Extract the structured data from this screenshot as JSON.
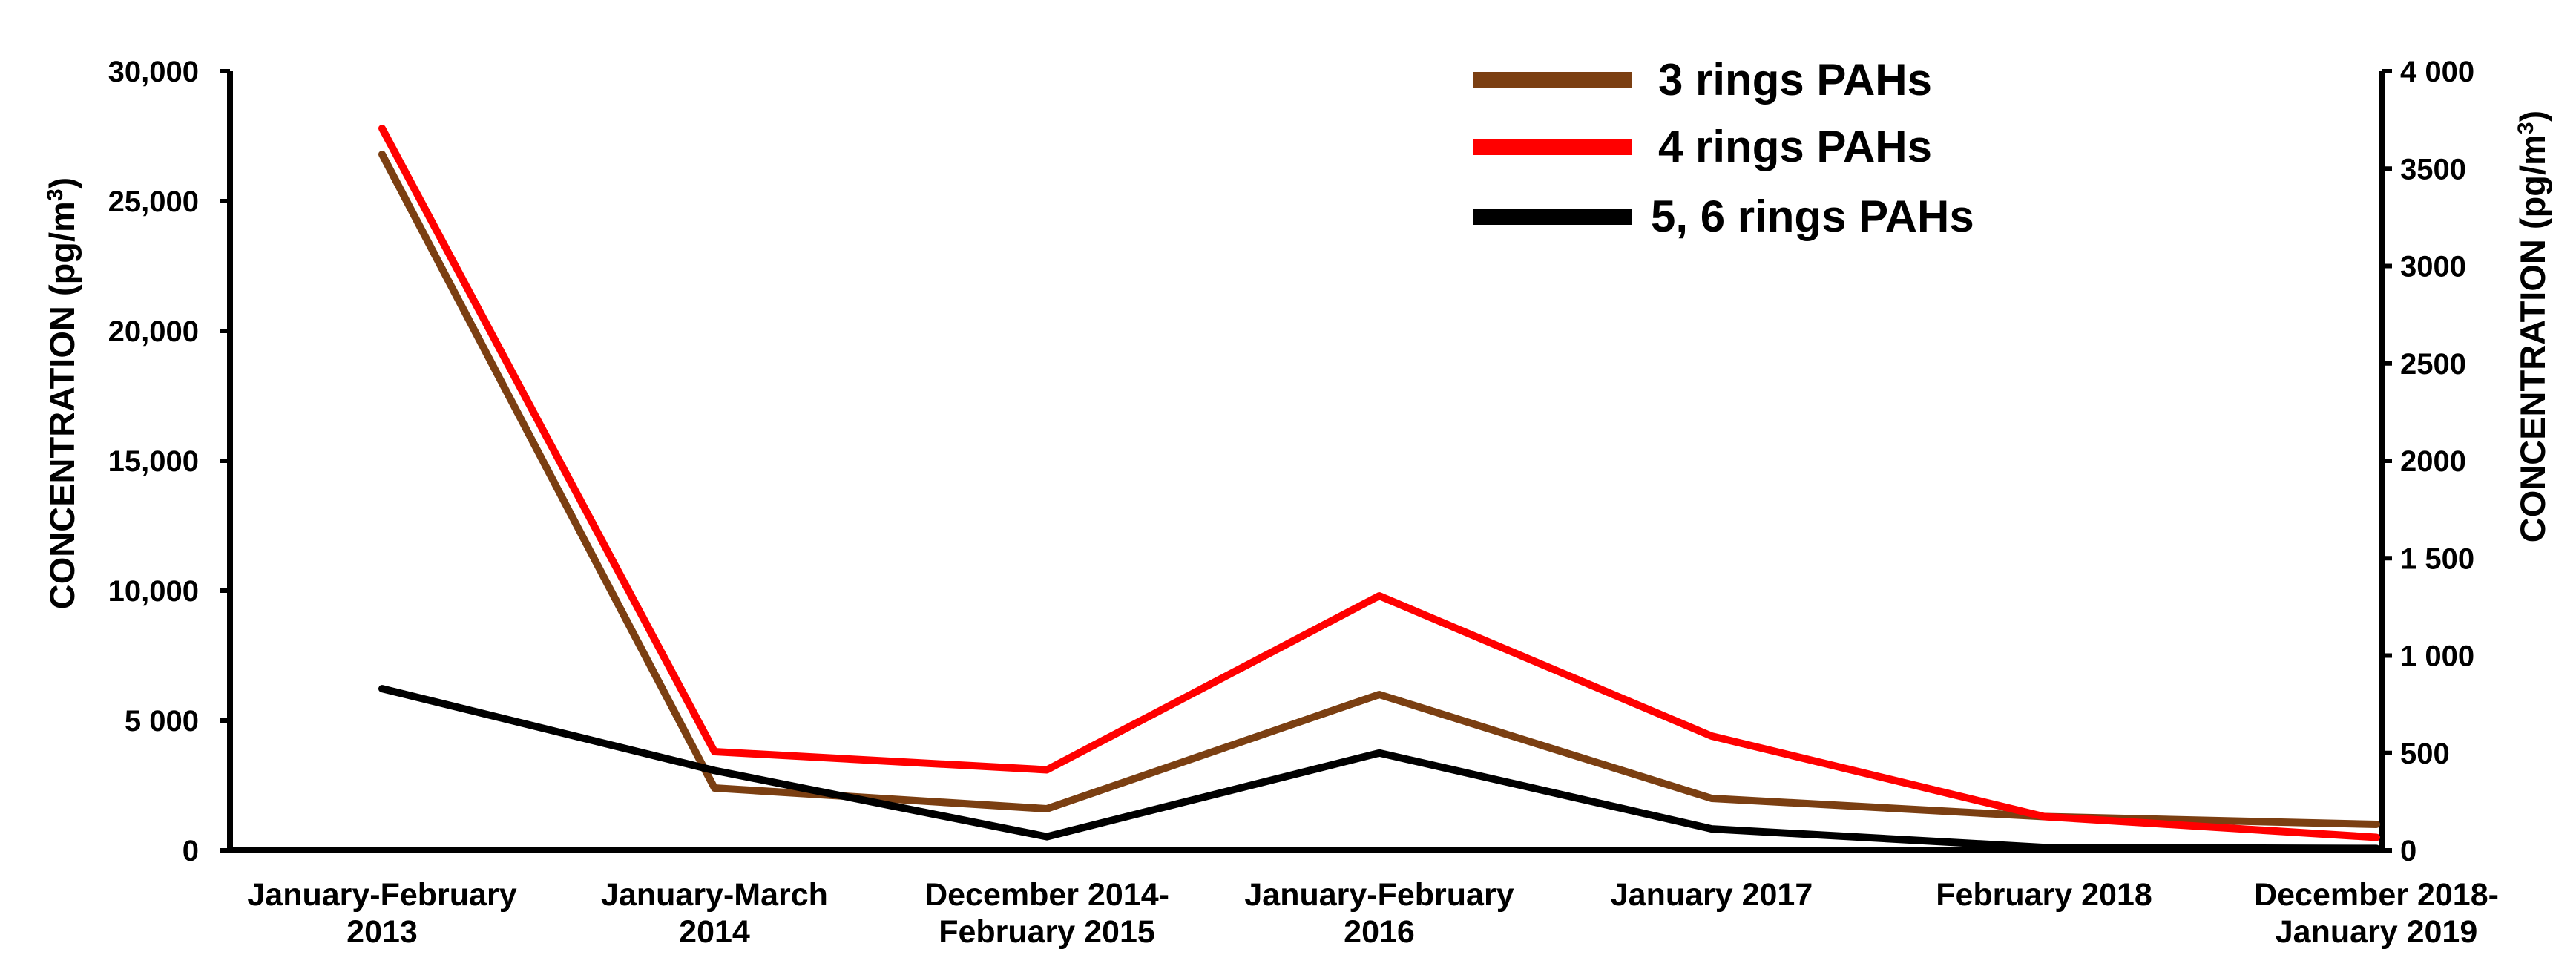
{
  "chart_data": {
    "type": "line",
    "categories": [
      [
        "January-February",
        "2013"
      ],
      [
        "January-March",
        "2014"
      ],
      [
        "December 2014-",
        "February 2015"
      ],
      [
        "January-February",
        "2016"
      ],
      [
        "January 2017"
      ],
      [
        "February 2018"
      ],
      [
        "December 2018-",
        "January 2019"
      ]
    ],
    "left_axis": {
      "label": "CONCENTRATION (pg/m",
      "label_sup": "3",
      "label_end": ")",
      "ylim": [
        0,
        30000
      ],
      "ticks": [
        {
          "value": 0,
          "label": "0"
        },
        {
          "value": 5000,
          "label": "5 000"
        },
        {
          "value": 10000,
          "label": "10,000"
        },
        {
          "value": 15000,
          "label": "15,000"
        },
        {
          "value": 20000,
          "label": "20,000"
        },
        {
          "value": 25000,
          "label": "25,000"
        },
        {
          "value": 30000,
          "label": "30,000"
        }
      ]
    },
    "right_axis": {
      "label": "CONCENTRATION (pg/m",
      "label_sup": "3",
      "label_end": ")",
      "ylim": [
        0,
        4000
      ],
      "ticks": [
        {
          "value": 0,
          "label": "0"
        },
        {
          "value": 500,
          "label": "500"
        },
        {
          "value": 1000,
          "label": "1 000"
        },
        {
          "value": 1500,
          "label": "1 500"
        },
        {
          "value": 2000,
          "label": "2000"
        },
        {
          "value": 2500,
          "label": "2500"
        },
        {
          "value": 3000,
          "label": "3000"
        },
        {
          "value": 3500,
          "label": "3500"
        },
        {
          "value": 4000,
          "label": "4 000"
        }
      ]
    },
    "series": [
      {
        "name": "3 rings PAHs",
        "color": "#7B3F12",
        "axis": "left",
        "values": [
          26800,
          2400,
          1600,
          6000,
          2000,
          1300,
          1000
        ]
      },
      {
        "name": "4 rings PAHs",
        "color": "#FF0000",
        "axis": "left",
        "values": [
          27800,
          3800,
          3100,
          9800,
          4400,
          1300,
          500
        ]
      },
      {
        "name": "5, 6 rings PAHs",
        "color": "#000000",
        "axis": "right",
        "values": [
          830,
          410,
          70,
          500,
          110,
          15,
          10
        ]
      }
    ],
    "legend": {
      "position": "top-center"
    },
    "grid": false
  }
}
